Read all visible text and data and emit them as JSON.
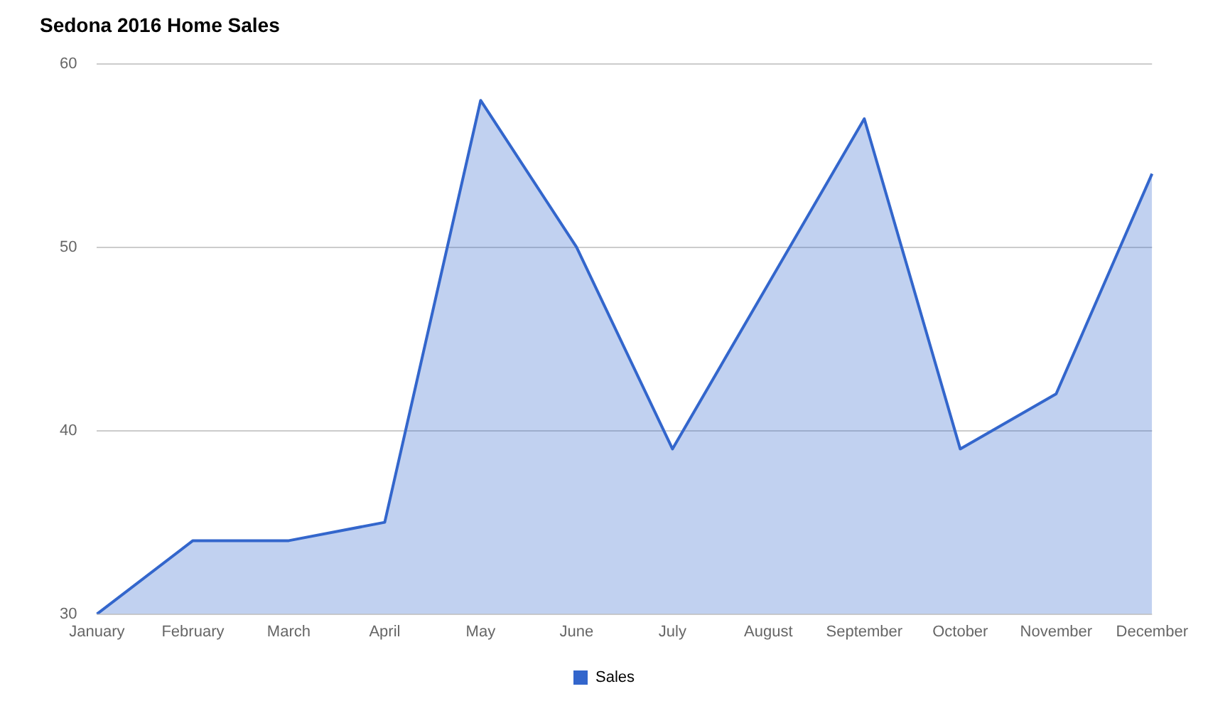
{
  "chart_data": {
    "type": "area",
    "title": "Sedona 2016 Home Sales",
    "categories": [
      "January",
      "February",
      "March",
      "April",
      "May",
      "June",
      "July",
      "August",
      "September",
      "October",
      "November",
      "December"
    ],
    "series": [
      {
        "name": "Sales",
        "color": "#3366cc",
        "values": [
          30,
          34,
          34,
          35,
          58,
          50,
          39,
          48,
          57,
          39,
          42,
          54
        ]
      }
    ],
    "ylim": [
      30,
      60
    ],
    "yticks": [
      30,
      40,
      50,
      60
    ],
    "grid": "y",
    "legend": "bottom"
  }
}
